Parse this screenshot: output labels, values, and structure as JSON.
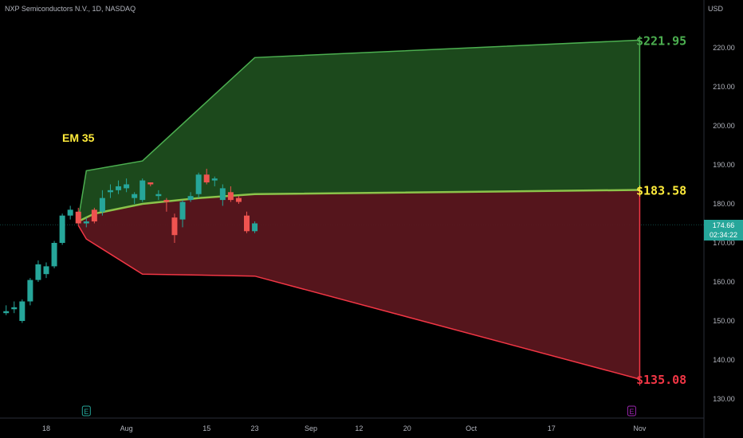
{
  "header": {
    "symbol": "NXP Semiconductors N.V., 1D, NASDAQ",
    "currency": "USD"
  },
  "price_tag": {
    "price": "174.66",
    "countdown": "02:34:22"
  },
  "colors": {
    "up": "#26a69a",
    "down": "#ef5350",
    "upper_fill": "#1e4d1e",
    "lower_fill": "#5a161d",
    "upper_line": "#4caf50",
    "lower_line": "#f23645",
    "mid_line": "#8bc34a",
    "label_yellow": "#ffeb3b"
  },
  "chart_data": {
    "type": "candlestick",
    "y_axis": {
      "range": [
        125,
        230
      ],
      "ticks": [
        "130.00",
        "140.00",
        "150.00",
        "160.00",
        "170.00",
        "180.00",
        "190.00",
        "200.00",
        "210.00",
        "220.00"
      ],
      "tick_values": [
        130,
        140,
        150,
        160,
        170,
        180,
        190,
        200,
        210,
        220
      ]
    },
    "x_axis": {
      "ticks": [
        {
          "label": "18",
          "day": 0
        },
        {
          "label": "Aug",
          "day": 10
        },
        {
          "label": "15",
          "day": 20
        },
        {
          "label": "23",
          "day": 26
        },
        {
          "label": "Sep",
          "day": 33
        },
        {
          "label": "12",
          "day": 39
        },
        {
          "label": "20",
          "day": 45
        },
        {
          "label": "Oct",
          "day": 53
        },
        {
          "label": "17",
          "day": 63
        },
        {
          "label": "Nov",
          "day": 74
        }
      ],
      "day_range": [
        -6,
        81
      ]
    },
    "candles": [
      {
        "day": -5,
        "o": 152.0,
        "h": 154.0,
        "l": 151.5,
        "c": 152.5
      },
      {
        "day": -4,
        "o": 153.0,
        "h": 155.0,
        "l": 152.0,
        "c": 153.5
      },
      {
        "day": -3,
        "o": 150.0,
        "h": 155.5,
        "l": 149.5,
        "c": 155.0
      },
      {
        "day": -2,
        "o": 155.0,
        "h": 161.0,
        "l": 154.0,
        "c": 160.5
      },
      {
        "day": -1,
        "o": 160.5,
        "h": 165.5,
        "l": 160.0,
        "c": 164.5
      },
      {
        "day": 0,
        "o": 162.0,
        "h": 165.0,
        "l": 161.0,
        "c": 164.0
      },
      {
        "day": 1,
        "o": 164.0,
        "h": 170.5,
        "l": 163.5,
        "c": 170.0
      },
      {
        "day": 2,
        "o": 170.0,
        "h": 177.5,
        "l": 169.5,
        "c": 177.0
      },
      {
        "day": 3,
        "o": 177.0,
        "h": 179.5,
        "l": 176.0,
        "c": 178.5
      },
      {
        "day": 4,
        "o": 178.0,
        "h": 179.0,
        "l": 174.5,
        "c": 175.0
      },
      {
        "day": 5,
        "o": 175.0,
        "h": 176.5,
        "l": 174.0,
        "c": 175.5
      },
      {
        "day": 6,
        "o": 178.5,
        "h": 179.0,
        "l": 175.0,
        "c": 175.5
      },
      {
        "day": 7,
        "o": 178.0,
        "h": 183.5,
        "l": 177.0,
        "c": 181.5
      },
      {
        "day": 8,
        "o": 183.0,
        "h": 185.0,
        "l": 181.5,
        "c": 183.5
      },
      {
        "day": 9,
        "o": 183.5,
        "h": 186.0,
        "l": 182.5,
        "c": 184.5
      },
      {
        "day": 10,
        "o": 184.0,
        "h": 186.5,
        "l": 183.0,
        "c": 185.0
      },
      {
        "day": 11,
        "o": 181.5,
        "h": 183.0,
        "l": 180.0,
        "c": 182.5
      },
      {
        "day": 12,
        "o": 181.0,
        "h": 186.5,
        "l": 180.5,
        "c": 186.0
      },
      {
        "day": 13,
        "o": 185.5,
        "h": 185.5,
        "l": 184.5,
        "c": 185.0
      },
      {
        "day": 14,
        "o": 182.0,
        "h": 183.5,
        "l": 181.0,
        "c": 182.5
      },
      {
        "day": 15,
        "o": 181.0,
        "h": 181.5,
        "l": 178.0,
        "c": 180.5
      },
      {
        "day": 16,
        "o": 176.5,
        "h": 177.5,
        "l": 170.0,
        "c": 172.0
      },
      {
        "day": 17,
        "o": 176.0,
        "h": 181.0,
        "l": 174.0,
        "c": 180.5
      },
      {
        "day": 18,
        "o": 181.0,
        "h": 183.0,
        "l": 180.5,
        "c": 182.0
      },
      {
        "day": 19,
        "o": 182.5,
        "h": 188.0,
        "l": 181.5,
        "c": 187.5
      },
      {
        "day": 20,
        "o": 187.5,
        "h": 189.0,
        "l": 185.0,
        "c": 185.5
      },
      {
        "day": 21,
        "o": 186.0,
        "h": 187.0,
        "l": 184.5,
        "c": 186.5
      },
      {
        "day": 22,
        "o": 181.0,
        "h": 185.0,
        "l": 179.5,
        "c": 184.0
      },
      {
        "day": 23,
        "o": 183.0,
        "h": 184.5,
        "l": 180.5,
        "c": 181.0
      },
      {
        "day": 24,
        "o": 181.5,
        "h": 182.0,
        "l": 180.0,
        "c": 180.5
      },
      {
        "day": 25,
        "o": 177.0,
        "h": 178.0,
        "l": 172.5,
        "c": 173.0
      },
      {
        "day": 26,
        "o": 173.0,
        "h": 175.5,
        "l": 172.5,
        "c": 175.0
      }
    ],
    "expected_move": {
      "label": "EM 35",
      "upper": [
        {
          "day": 4,
          "v": 176.0
        },
        {
          "day": 5,
          "v": 188.5
        },
        {
          "day": 12,
          "v": 191.0
        },
        {
          "day": 26,
          "v": 217.5
        },
        {
          "day": 74,
          "v": 221.95
        }
      ],
      "mid": [
        {
          "day": 4,
          "v": 175.5
        },
        {
          "day": 5,
          "v": 176.5
        },
        {
          "day": 6,
          "v": 177.5
        },
        {
          "day": 12,
          "v": 180.0
        },
        {
          "day": 19,
          "v": 181.5
        },
        {
          "day": 26,
          "v": 182.5
        },
        {
          "day": 74,
          "v": 183.58
        }
      ],
      "lower": [
        {
          "day": 4,
          "v": 174.5
        },
        {
          "day": 5,
          "v": 171.0
        },
        {
          "day": 12,
          "v": 162.0
        },
        {
          "day": 26,
          "v": 161.5
        },
        {
          "day": 74,
          "v": 135.08
        }
      ],
      "upper_label": "$221.95",
      "mid_label": "$183.58",
      "lower_label": "$135.08"
    },
    "current_price": 174.66,
    "event_markers": [
      {
        "label": "E",
        "day": 5,
        "color": "#26a69a"
      },
      {
        "label": "E",
        "day": 73,
        "color": "#9c27b0"
      }
    ]
  }
}
